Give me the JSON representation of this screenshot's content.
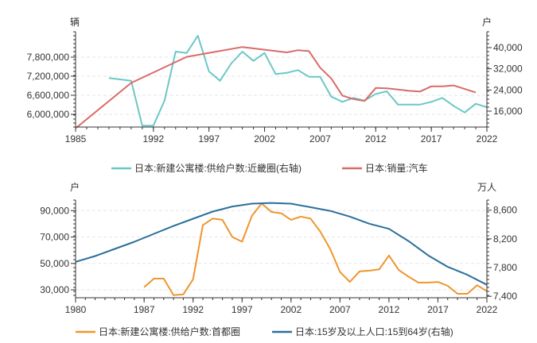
{
  "chart_data": [
    {
      "type": "line",
      "left_unit": "辆",
      "right_unit": "户",
      "x_ticks": [
        "1985",
        "1992",
        "1997",
        "2002",
        "2007",
        "2012",
        "2017",
        "2022"
      ],
      "y_left_ticks": [
        "6,000,000",
        "6,600,000",
        "7,200,000",
        "7,800,000"
      ],
      "y_right_ticks": [
        "16,000",
        "24,000",
        "32,000",
        "40,000"
      ],
      "xlim": [
        1985,
        2022
      ],
      "ylim_left": [
        5600000,
        8600000
      ],
      "ylim_right": [
        10000,
        46000
      ],
      "series": [
        {
          "name": "日本:新建公寓楼:供给户数:近畿圈(右轴)",
          "axis": "right",
          "color": "#6cc7c7",
          "x": [
            1988,
            1989,
            1990,
            1991,
            1992,
            1993,
            1994,
            1995,
            1996,
            1997,
            1998,
            1999,
            2000,
            2001,
            2002,
            2003,
            2004,
            2005,
            2006,
            2007,
            2008,
            2009,
            2010,
            2011,
            2012,
            2013,
            2014,
            2015,
            2016,
            2017,
            2018,
            2019,
            2020,
            2021,
            2022
          ],
          "y": [
            28500,
            28000,
            27500,
            10500,
            10500,
            20000,
            38500,
            38000,
            44500,
            31000,
            27500,
            34000,
            38500,
            35000,
            38000,
            30000,
            30500,
            31500,
            29000,
            29000,
            21500,
            19500,
            21000,
            20000,
            22500,
            23500,
            18500,
            18500,
            18500,
            19500,
            21000,
            18000,
            15500,
            18800,
            17500
          ]
        },
        {
          "name": "日本:销量:汽车",
          "axis": "left",
          "color": "#d96b6b",
          "x": [
            1985,
            1990,
            1995,
            2000,
            2004,
            2005,
            2006,
            2007,
            2008,
            2009,
            2010,
            2011,
            2012,
            2013,
            2014,
            2015,
            2016,
            2017,
            2018,
            2019,
            2021
          ],
          "y": [
            5560000,
            6990000,
            7810000,
            8120000,
            7950000,
            8020000,
            7990000,
            7470000,
            7130000,
            6590000,
            6480000,
            6420000,
            6830000,
            6820000,
            6780000,
            6740000,
            6720000,
            6880000,
            6880000,
            6910000,
            6690000
          ]
        }
      ]
    },
    {
      "type": "line",
      "left_unit": "户",
      "right_unit": "万人",
      "x_ticks": [
        "1980",
        "1987",
        "1992",
        "1997",
        "2002",
        "2007",
        "2012",
        "2017",
        "2022"
      ],
      "y_left_ticks": [
        "30,000",
        "50,000",
        "70,000",
        "90,000"
      ],
      "y_right_ticks": [
        "7,400",
        "7,800",
        "8,200",
        "8,600"
      ],
      "xlim": [
        1980,
        2022
      ],
      "ylim_left": [
        24000,
        98000
      ],
      "ylim_right": [
        7380,
        8740
      ],
      "series": [
        {
          "name": "日本:新建公寓楼:供给户数:首都圈",
          "axis": "left",
          "color": "#f0952d",
          "x": [
            1987,
            1988,
            1989,
            1990,
            1991,
            1992,
            1993,
            1994,
            1995,
            1996,
            1997,
            1998,
            1999,
            2000,
            2001,
            2002,
            2003,
            2004,
            2005,
            2006,
            2007,
            2008,
            2009,
            2010,
            2011,
            2012,
            2013,
            2014,
            2015,
            2016,
            2017,
            2018,
            2019,
            2020,
            2021,
            2022
          ],
          "y": [
            32000,
            38500,
            38500,
            26000,
            26500,
            38000,
            79000,
            84000,
            83000,
            70000,
            66500,
            86000,
            95500,
            89000,
            88000,
            83000,
            85500,
            84000,
            74000,
            61000,
            43500,
            36000,
            44000,
            44500,
            45500,
            56000,
            45000,
            40000,
            35500,
            35500,
            36000,
            33000,
            27000,
            27000,
            33500,
            29000
          ]
        },
        {
          "name": "日本:15岁及以上人口:15到64岁(右轴)",
          "axis": "right",
          "color": "#2a6f9b",
          "x": [
            1980,
            1982,
            1984,
            1986,
            1988,
            1990,
            1992,
            1994,
            1996,
            1998,
            2000,
            2002,
            2004,
            2006,
            2008,
            2010,
            2012,
            2014,
            2016,
            2018,
            2020,
            2022
          ],
          "y": [
            7880,
            7960,
            8060,
            8160,
            8270,
            8380,
            8480,
            8580,
            8650,
            8690,
            8700,
            8690,
            8640,
            8590,
            8510,
            8410,
            8340,
            8170,
            7970,
            7810,
            7700,
            7560
          ]
        }
      ]
    }
  ]
}
